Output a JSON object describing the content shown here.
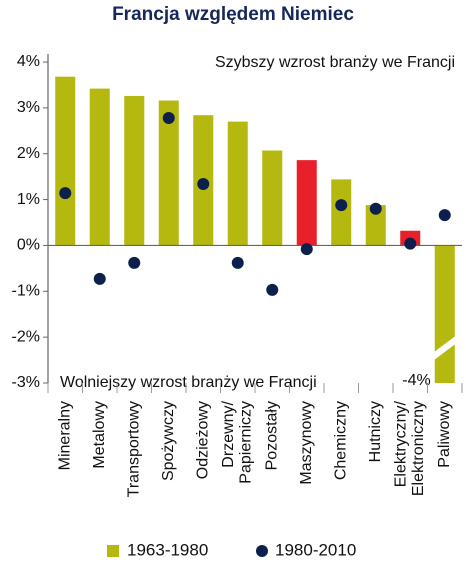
{
  "chart_data": {
    "type": "bar",
    "title": "Francja względem Niemiec",
    "annotations": [
      "Szybszy wzrost branży we Francji",
      "Wolniejszy wzrost branży we Francji"
    ],
    "categories": [
      "Mineralny",
      "Metalowy",
      "Transportowy",
      "Spożywczy",
      "Odzieżowy",
      "Drzewny/\nPapierniczy",
      "Pozostały",
      "Maszynowy",
      "Chemiczny",
      "Hutniczy",
      "Elektryczny/\nElektroniczny",
      "Paliwowy"
    ],
    "series": [
      {
        "name": "1963-1980",
        "type": "bar",
        "color": "#b5b80e",
        "colors": [
          "#b5b80e",
          "#b5b80e",
          "#b5b80e",
          "#b5b80e",
          "#b5b80e",
          "#b5b80e",
          "#b5b80e",
          "#e8202a",
          "#b5b80e",
          "#b5b80e",
          "#e8202a",
          "#b5b80e"
        ],
        "values": [
          3.68,
          3.42,
          3.26,
          3.16,
          2.84,
          2.7,
          2.07,
          1.86,
          1.44,
          0.88,
          0.32,
          -4
        ],
        "value_labels": [
          null,
          null,
          null,
          null,
          null,
          null,
          null,
          null,
          null,
          null,
          null,
          "-4%"
        ]
      },
      {
        "name": "1980-2010",
        "type": "scatter",
        "color": "#0d1f4d",
        "values": [
          1.14,
          -0.73,
          -0.38,
          2.78,
          1.34,
          -0.38,
          -0.97,
          -0.08,
          0.88,
          0.8,
          0.04,
          0.66
        ]
      }
    ],
    "ylim": [
      -3,
      4
    ],
    "yticks": [
      {
        "value": -3,
        "label": "-3%"
      },
      {
        "value": -2,
        "label": "-2%"
      },
      {
        "value": -1,
        "label": "-1%"
      },
      {
        "value": 0,
        "label": "0%"
      },
      {
        "value": 1,
        "label": "1%"
      },
      {
        "value": 2,
        "label": "2%"
      },
      {
        "value": 3,
        "label": "3%"
      },
      {
        "value": 4,
        "label": "4%"
      }
    ],
    "grid": false,
    "legend": "bottom"
  }
}
